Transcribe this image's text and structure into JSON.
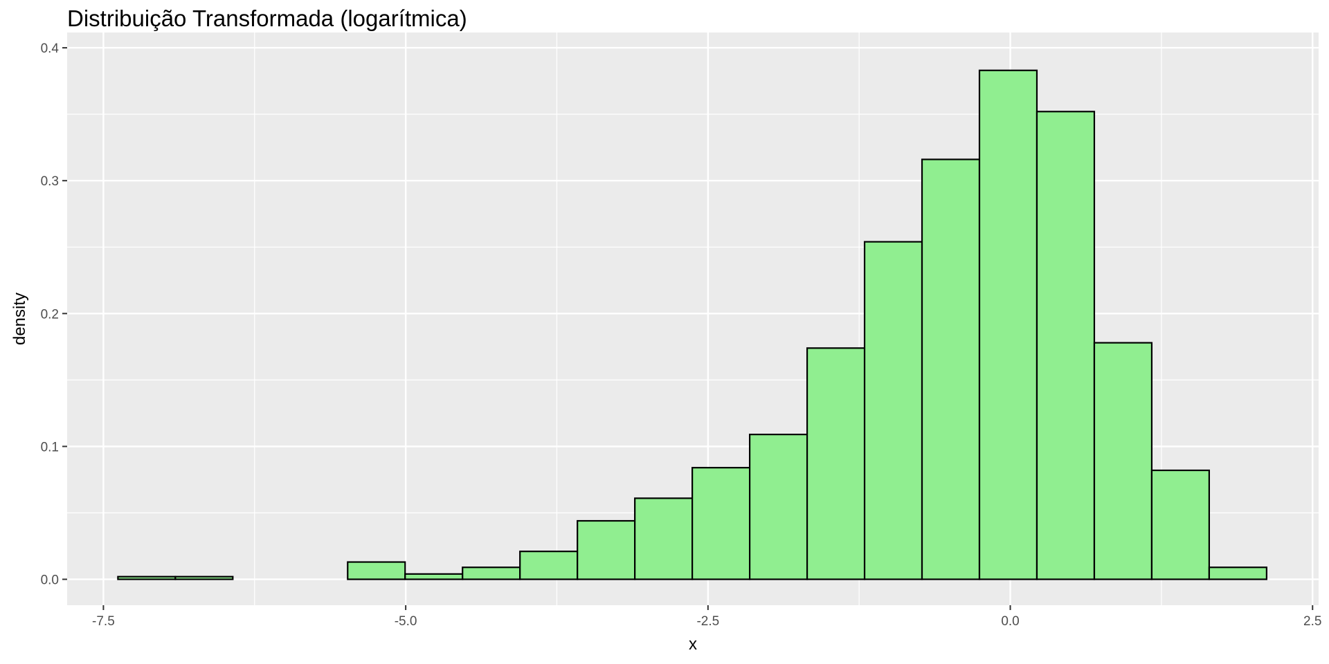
{
  "chart_data": {
    "type": "bar",
    "subtype": "histogram",
    "title": "Distribuição Transformada (logarítmica)",
    "xlabel": "x",
    "ylabel": "density",
    "xlim": [
      -7.8,
      2.55
    ],
    "ylim": [
      -0.0195,
      0.4115
    ],
    "x_ticks": [
      -7.5,
      -5.0,
      -2.5,
      0.0,
      2.5
    ],
    "x_tick_labels": [
      "-7.5",
      "-5.0",
      "-2.5",
      "0.0",
      "2.5"
    ],
    "y_ticks": [
      0.0,
      0.1,
      0.2,
      0.3,
      0.4
    ],
    "y_tick_labels": [
      "0.0",
      "0.1",
      "0.2",
      "0.3",
      "0.4"
    ],
    "grid": true,
    "legend": "none",
    "colors": {
      "bar_fill": "#90ee90",
      "bar_stroke": "#000000",
      "panel_bg": "#ebebeb",
      "grid": "#ffffff"
    },
    "bins": [
      {
        "x0": -7.38,
        "x1": -6.905,
        "density": 0.002
      },
      {
        "x0": -6.905,
        "x1": -6.43,
        "density": 0.002
      },
      {
        "x0": -6.43,
        "x1": -5.955,
        "density": 0.0
      },
      {
        "x0": -5.955,
        "x1": -5.48,
        "density": 0.0
      },
      {
        "x0": -5.48,
        "x1": -5.005,
        "density": 0.013
      },
      {
        "x0": -5.005,
        "x1": -4.53,
        "density": 0.004
      },
      {
        "x0": -4.53,
        "x1": -4.055,
        "density": 0.009
      },
      {
        "x0": -4.055,
        "x1": -3.58,
        "density": 0.021
      },
      {
        "x0": -3.58,
        "x1": -3.105,
        "density": 0.044
      },
      {
        "x0": -3.105,
        "x1": -2.63,
        "density": 0.061
      },
      {
        "x0": -2.63,
        "x1": -2.155,
        "density": 0.084
      },
      {
        "x0": -2.155,
        "x1": -1.68,
        "density": 0.109
      },
      {
        "x0": -1.68,
        "x1": -1.205,
        "density": 0.174
      },
      {
        "x0": -1.205,
        "x1": -0.73,
        "density": 0.254
      },
      {
        "x0": -0.73,
        "x1": -0.255,
        "density": 0.316
      },
      {
        "x0": -0.255,
        "x1": 0.22,
        "density": 0.383
      },
      {
        "x0": 0.22,
        "x1": 0.695,
        "density": 0.352
      },
      {
        "x0": 0.695,
        "x1": 1.17,
        "density": 0.178
      },
      {
        "x0": 1.17,
        "x1": 1.645,
        "density": 0.082
      },
      {
        "x0": 1.645,
        "x1": 2.12,
        "density": 0.009
      }
    ]
  }
}
